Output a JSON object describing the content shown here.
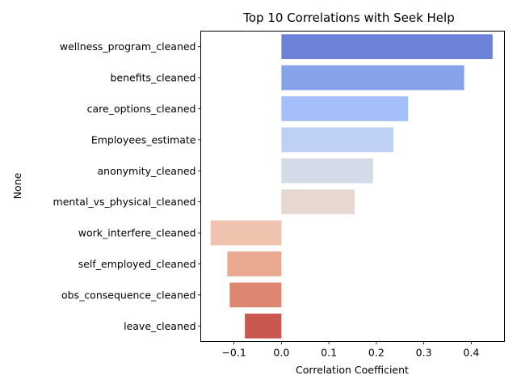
{
  "chart_data": {
    "type": "bar",
    "orientation": "horizontal",
    "title": "Top 10 Correlations with Seek Help",
    "xlabel": "Correlation Coefficient",
    "ylabel": "None",
    "xlim": [
      -0.17,
      0.47
    ],
    "xticks": [
      -0.1,
      0.0,
      0.1,
      0.2,
      0.3,
      0.4
    ],
    "xtick_labels": [
      "−0.1",
      "0.0",
      "0.1",
      "0.2",
      "0.3",
      "0.4"
    ],
    "grid": false,
    "categories": [
      "wellness_program_cleaned",
      "benefits_cleaned",
      "care_options_cleaned",
      "Employees_estimate",
      "anonymity_cleaned",
      "mental_vs_physical_cleaned",
      "work_interfere_cleaned",
      "self_employed_cleaned",
      "obs_consequence_cleaned",
      "leave_cleaned"
    ],
    "values": [
      0.445,
      0.385,
      0.267,
      0.236,
      0.193,
      0.154,
      -0.149,
      -0.114,
      -0.109,
      -0.077
    ],
    "colors": [
      "#6b82d8",
      "#86a3ea",
      "#a3bef9",
      "#bed1f5",
      "#d4dae8",
      "#e7d8cf",
      "#efc3ad",
      "#e9a890",
      "#dd8772",
      "#c8574f"
    ]
  }
}
